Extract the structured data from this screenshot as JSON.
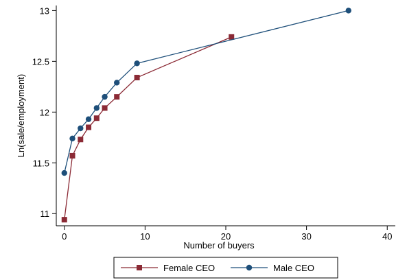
{
  "chart_data": {
    "type": "line",
    "xlabel": "Number of buyers",
    "ylabel": "Ln(sale/employment)",
    "xlim": [
      -1,
      41
    ],
    "ylim": [
      10.88,
      13.05
    ],
    "x_ticks": [
      0,
      10,
      20,
      30,
      40
    ],
    "y_ticks": [
      11,
      11.5,
      12,
      12.5,
      13
    ],
    "x_tick_labels": [
      "0",
      "10",
      "20",
      "30",
      "40"
    ],
    "y_tick_labels": [
      "11",
      "11.5",
      "12",
      "12.5",
      "13"
    ],
    "grid": false,
    "legend_position": "bottom",
    "series": [
      {
        "name": "Female CEO",
        "marker": "square",
        "color": "#8b2a35",
        "x": [
          0,
          1,
          2,
          3,
          4,
          5,
          6.5,
          9,
          20.7
        ],
        "y": [
          10.94,
          11.57,
          11.73,
          11.85,
          11.94,
          12.04,
          12.15,
          12.34,
          12.74
        ]
      },
      {
        "name": "Male CEO",
        "marker": "circle",
        "color": "#1e4f7a",
        "x": [
          0,
          1,
          2,
          3,
          4,
          5,
          6.5,
          9,
          35.2
        ],
        "y": [
          11.4,
          11.74,
          11.84,
          11.93,
          12.04,
          12.15,
          12.29,
          12.48,
          13.0
        ]
      }
    ]
  }
}
